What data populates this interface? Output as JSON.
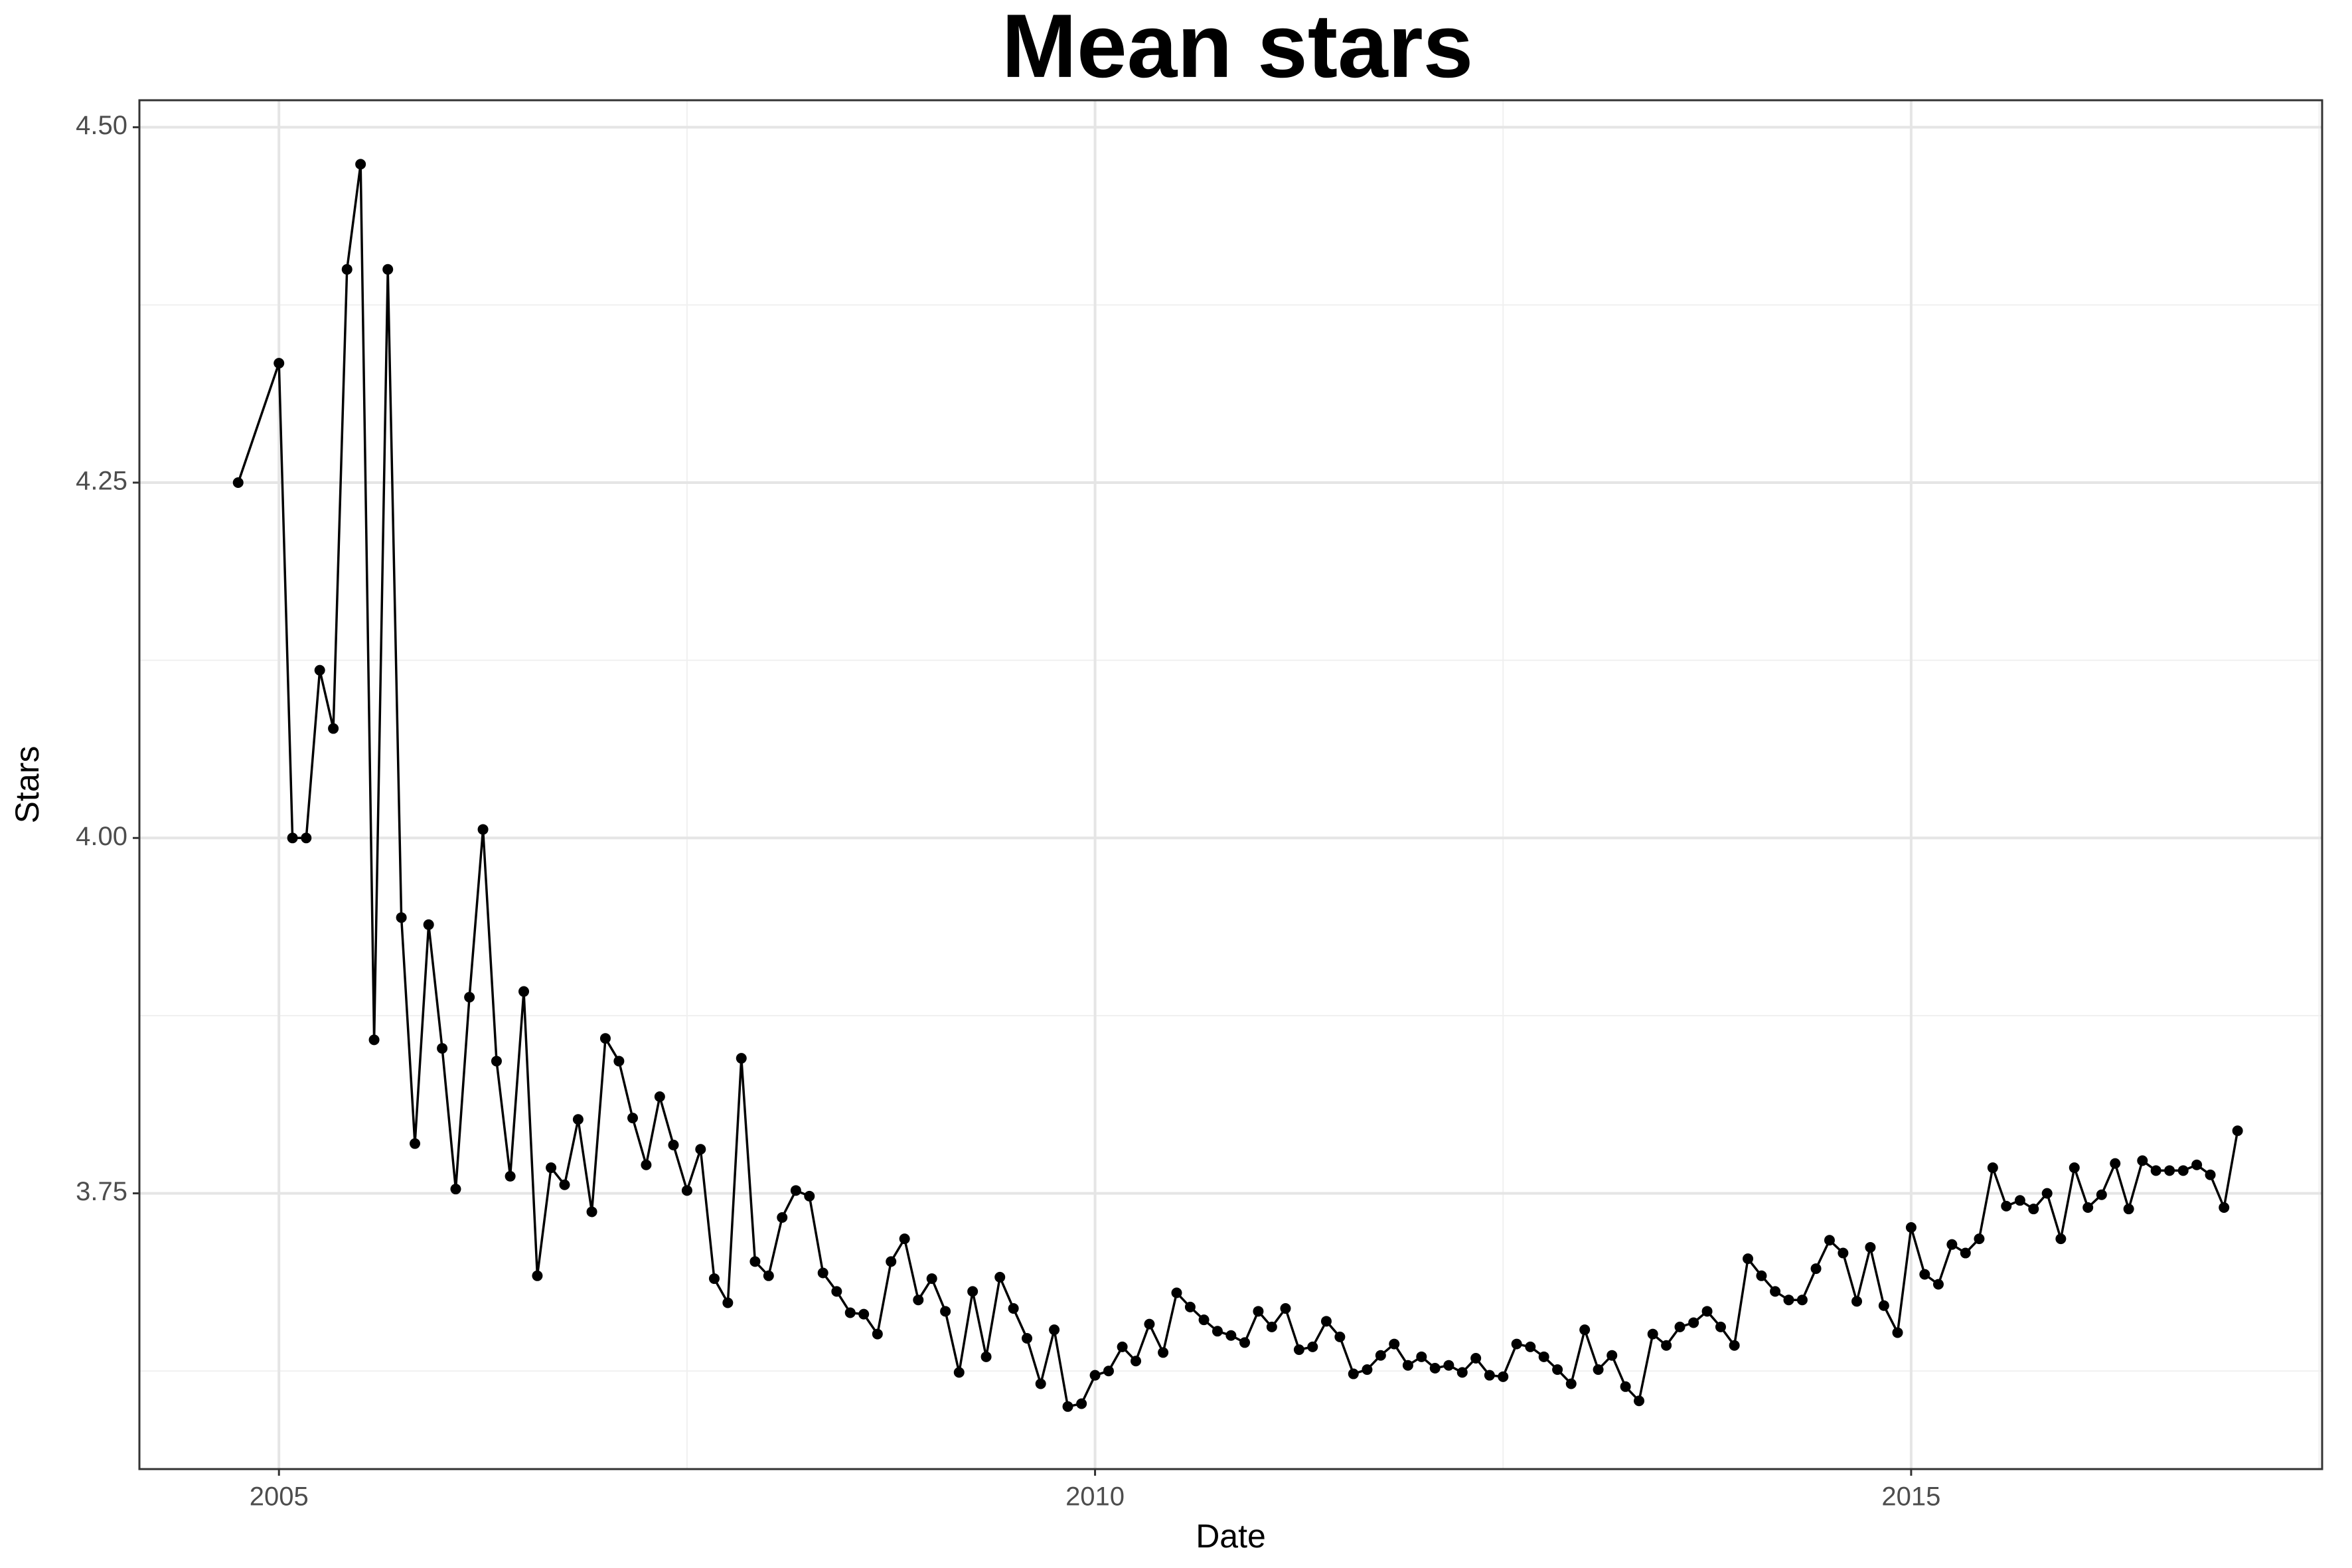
{
  "chart_data": {
    "type": "line",
    "title": "Mean stars",
    "x_label": "Date",
    "y_label": "Stars",
    "color": "#000000",
    "grid": true,
    "xlim": [
      2004.145,
      2017.518
    ],
    "ylim": [
      3.556,
      4.519
    ],
    "xticks": [
      2005,
      2010,
      2015
    ],
    "yticks": [
      3.75,
      {
        "value": 4,
        "label": "4.00"
      },
      4.25,
      {
        "value": 4.5,
        "label": "4.50"
      }
    ],
    "xminor": [
      2007.5,
      2012.5,
      2017.5
    ],
    "yminor": [
      3.625,
      3.875,
      4.125,
      4.375
    ],
    "x": [
      2004.75,
      2005,
      2005.083,
      2005.167,
      2005.25,
      2005.333,
      2005.417,
      2005.5,
      2005.583,
      2005.667,
      2005.75,
      2005.833,
      2005.917,
      2006,
      2006.083,
      2006.167,
      2006.25,
      2006.333,
      2006.417,
      2006.5,
      2006.583,
      2006.667,
      2006.75,
      2006.833,
      2006.917,
      2007,
      2007.083,
      2007.167,
      2007.25,
      2007.333,
      2007.417,
      2007.5,
      2007.583,
      2007.667,
      2007.75,
      2007.833,
      2007.917,
      2008,
      2008.083,
      2008.167,
      2008.25,
      2008.333,
      2008.417,
      2008.5,
      2008.583,
      2008.667,
      2008.75,
      2008.833,
      2008.917,
      2009,
      2009.083,
      2009.167,
      2009.25,
      2009.333,
      2009.417,
      2009.5,
      2009.583,
      2009.667,
      2009.75,
      2009.833,
      2009.917,
      2010,
      2010.083,
      2010.167,
      2010.25,
      2010.333,
      2010.417,
      2010.5,
      2010.583,
      2010.667,
      2010.75,
      2010.833,
      2010.917,
      2011,
      2011.083,
      2011.167,
      2011.25,
      2011.333,
      2011.417,
      2011.5,
      2011.583,
      2011.667,
      2011.75,
      2011.833,
      2011.917,
      2012,
      2012.083,
      2012.167,
      2012.25,
      2012.333,
      2012.417,
      2012.5,
      2012.583,
      2012.667,
      2012.75,
      2012.833,
      2012.917,
      2013,
      2013.083,
      2013.167,
      2013.25,
      2013.333,
      2013.417,
      2013.5,
      2013.583,
      2013.667,
      2013.75,
      2013.833,
      2013.917,
      2014,
      2014.083,
      2014.167,
      2014.25,
      2014.333,
      2014.417,
      2014.5,
      2014.583,
      2014.667,
      2014.75,
      2014.833,
      2014.917,
      2015,
      2015.083,
      2015.167,
      2015.25,
      2015.333,
      2015.417,
      2015.5,
      2015.583,
      2015.667,
      2015.75,
      2015.833,
      2015.917,
      2016,
      2016.083,
      2016.167,
      2016.25,
      2016.333,
      2016.417,
      2016.5,
      2016.583,
      2016.667,
      2016.75,
      2016.833,
      2016.917,
      2017
    ],
    "values": [
      4.25,
      4.334,
      4.0,
      4.0,
      4.118,
      4.077,
      4.4,
      4.474,
      3.858,
      4.4,
      3.944,
      3.785,
      3.939,
      3.852,
      3.753,
      3.888,
      4.006,
      3.843,
      3.762,
      3.892,
      3.692,
      3.768,
      3.756,
      3.802,
      3.737,
      3.859,
      3.843,
      3.803,
      3.77,
      3.818,
      3.784,
      3.752,
      3.781,
      3.69,
      3.673,
      3.845,
      3.702,
      3.692,
      3.733,
      3.752,
      3.748,
      3.694,
      3.681,
      3.666,
      3.665,
      3.651,
      3.702,
      3.718,
      3.675,
      3.69,
      3.667,
      3.624,
      3.681,
      3.635,
      3.691,
      3.669,
      3.648,
      3.616,
      3.654,
      3.6,
      3.602,
      3.622,
      3.625,
      3.642,
      3.632,
      3.658,
      3.638,
      3.68,
      3.67,
      3.661,
      3.653,
      3.65,
      3.645,
      3.667,
      3.656,
      3.669,
      3.64,
      3.642,
      3.66,
      3.649,
      3.623,
      3.626,
      3.636,
      3.644,
      3.629,
      3.635,
      3.627,
      3.629,
      3.624,
      3.634,
      3.622,
      3.621,
      3.644,
      3.642,
      3.635,
      3.626,
      3.616,
      3.654,
      3.626,
      3.636,
      3.614,
      3.604,
      3.651,
      3.643,
      3.656,
      3.659,
      3.667,
      3.656,
      3.643,
      3.704,
      3.692,
      3.681,
      3.675,
      3.675,
      3.697,
      3.717,
      3.708,
      3.674,
      3.712,
      3.671,
      3.652,
      3.726,
      3.693,
      3.686,
      3.714,
      3.708,
      3.718,
      3.768,
      3.741,
      3.745,
      3.739,
      3.75,
      3.718,
      3.768,
      3.74,
      3.749,
      3.771,
      3.739,
      3.773,
      3.766,
      3.766,
      3.766,
      3.77,
      3.763,
      3.74,
      3.794
    ]
  }
}
